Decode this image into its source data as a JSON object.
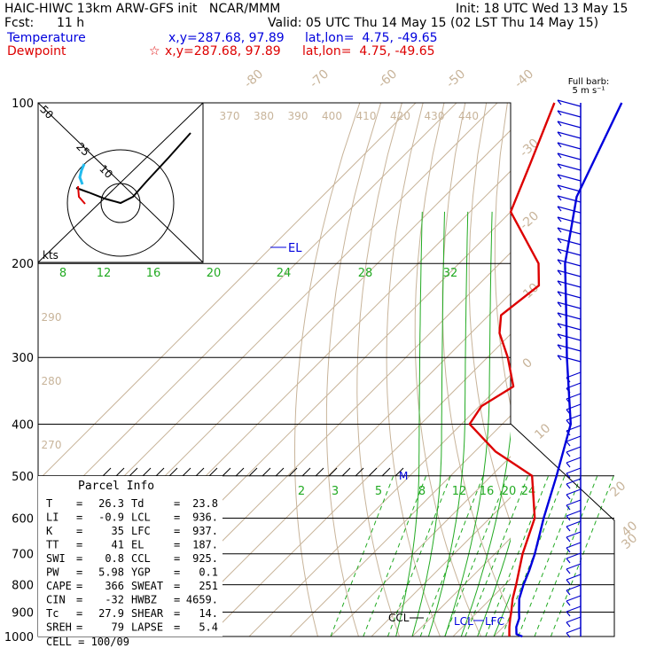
{
  "header": {
    "line1_left": "HAIC-HIWC 13km ARW-GFS init   NCAR/MMM",
    "line1_right": "Init: 18 UTC Wed 13 May 15",
    "fcst_label": "Fcst:",
    "fcst_value": "11 h",
    "valid": "Valid: 05 UTC Thu 14 May 15 (02 LST Thu 14 May 15)",
    "temperature_label": "Temperature",
    "temperature_xy": "x,y=287.68, 97.89",
    "temperature_latlon": "lat,lon=  4.75, -49.65",
    "dewpoint_label": "Dewpoint",
    "dewpoint_marker": "☆",
    "dewpoint_xy": "x,y=287.68, 97.89",
    "dewpoint_latlon": "lat,lon=  4.75, -49.65"
  },
  "colors": {
    "temperature": "#0000dd",
    "dewpoint": "#dd0000",
    "isotherm": "#c8b49a",
    "theta": "#c8b49a",
    "moist_adiabat": "#22aa22",
    "mixing_ratio": "#22aa22",
    "isobar": "#000000",
    "wind": "#0000cc",
    "hodograph_cyan": "#22bbee"
  },
  "chart_data": {
    "type": "skew-t",
    "pressure_levels": [
      100,
      200,
      300,
      400,
      500,
      600,
      700,
      800,
      900,
      1000
    ],
    "isotherm_labels": [
      "-80",
      "-70",
      "-60",
      "-50",
      "-40",
      "-30",
      "-20",
      "-10",
      "0",
      "10",
      "20",
      "30",
      "40"
    ],
    "theta_labels": [
      "370",
      "380",
      "390",
      "400",
      "410",
      "420",
      "430",
      "440"
    ],
    "theta_left_labels": [
      "290",
      "280",
      "270"
    ],
    "moist_adiabat_labels": [
      "8",
      "12",
      "16",
      "20",
      "24",
      "28",
      "32"
    ],
    "mixing_ratio_labels": [
      "2",
      "3",
      "5",
      "8",
      "12",
      "16",
      "20",
      "24"
    ],
    "temperature": [
      {
        "p": 1000,
        "t": 27.0
      },
      {
        "p": 990,
        "t": 25.0
      },
      {
        "p": 960,
        "t": 23.2
      },
      {
        "p": 925,
        "t": 21.8
      },
      {
        "p": 900,
        "t": 20.2
      },
      {
        "p": 850,
        "t": 17.0
      },
      {
        "p": 800,
        "t": 14.6
      },
      {
        "p": 750,
        "t": 12.4
      },
      {
        "p": 700,
        "t": 9.8
      },
      {
        "p": 600,
        "t": 3.2
      },
      {
        "p": 500,
        "t": -4.0
      },
      {
        "p": 400,
        "t": -13.2
      },
      {
        "p": 300,
        "t": -30.5
      },
      {
        "p": 250,
        "t": -41.0
      },
      {
        "p": 200,
        "t": -54.0
      },
      {
        "p": 150,
        "t": -67.5
      },
      {
        "p": 100,
        "t": -79.5
      }
    ],
    "dewpoint": [
      {
        "p": 1000,
        "t": 23.8
      },
      {
        "p": 960,
        "t": 21.5
      },
      {
        "p": 925,
        "t": 19.6
      },
      {
        "p": 900,
        "t": 18.3
      },
      {
        "p": 850,
        "t": 15.4
      },
      {
        "p": 800,
        "t": 12.8
      },
      {
        "p": 700,
        "t": 6.8
      },
      {
        "p": 600,
        "t": 1.0
      },
      {
        "p": 500,
        "t": -10.0
      },
      {
        "p": 450,
        "t": -25.0
      },
      {
        "p": 400,
        "t": -38.0
      },
      {
        "p": 370,
        "t": -39.5
      },
      {
        "p": 340,
        "t": -36.5
      },
      {
        "p": 300,
        "t": -45.0
      },
      {
        "p": 270,
        "t": -53.0
      },
      {
        "p": 250,
        "t": -57.0
      },
      {
        "p": 220,
        "t": -55.0
      },
      {
        "p": 200,
        "t": -60.5
      },
      {
        "p": 160,
        "t": -80.0
      },
      {
        "p": 130,
        "t": -87.0
      },
      {
        "p": 100,
        "t": -96.0
      }
    ],
    "annotations": {
      "el": "EL",
      "ccl": "CCL",
      "lcl": "LCL",
      "lfc": "LFC",
      "m_marker": "M"
    },
    "hodograph": {
      "kts_label": "kts",
      "ring_labels": [
        "50",
        "25",
        "10"
      ]
    },
    "wind_barbs": {
      "title": "Full barb:",
      "value": "5 m s⁻¹"
    }
  },
  "parcel_info": {
    "title": "Parcel Info",
    "rows": [
      [
        "T",
        "26.3",
        "Td",
        "23.8"
      ],
      [
        "LI",
        "-0.9",
        "LCL",
        "936."
      ],
      [
        "K",
        "35",
        "LFC",
        "937."
      ],
      [
        "TT",
        "41",
        "EL",
        "187."
      ],
      [
        "SWI",
        "0.8",
        "CCL",
        "925."
      ],
      [
        "PW",
        "5.98",
        "YGP",
        "0.1"
      ],
      [
        "CAPE",
        "366",
        "SWEAT",
        "251"
      ],
      [
        "CIN",
        "-32",
        "HWBZ",
        "4659."
      ],
      [
        "Tc",
        "27.9",
        "SHEAR",
        "14."
      ],
      [
        "SREH",
        "79",
        "LAPSE",
        "5.4"
      ]
    ],
    "cell": "CELL = 100/09"
  }
}
